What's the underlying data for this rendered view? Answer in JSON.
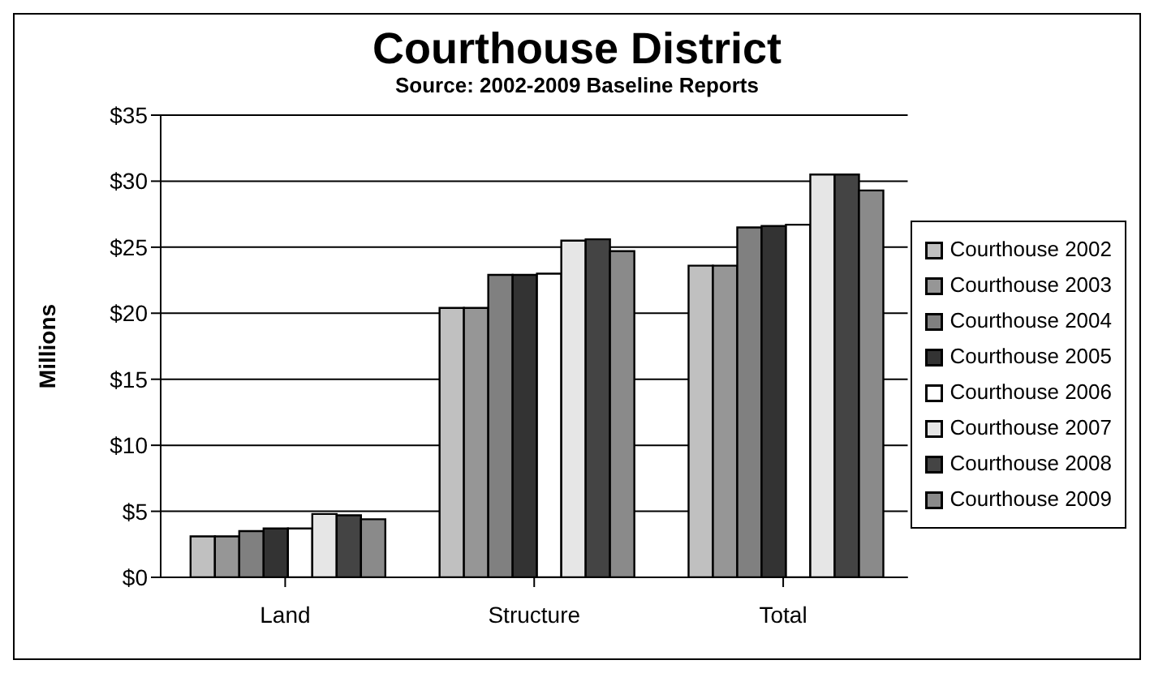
{
  "chart_data": {
    "type": "bar",
    "title": "Courthouse District",
    "subtitle": "Source: 2002-2009 Baseline Reports",
    "ylabel": "Millions",
    "categories": [
      "Land",
      "Structure",
      "Total"
    ],
    "series": [
      {
        "name": "Courthouse 2002",
        "color": "#c0c0c0",
        "values": [
          3.1,
          20.4,
          23.6
        ]
      },
      {
        "name": "Courthouse 2003",
        "color": "#969696",
        "values": [
          3.1,
          20.4,
          23.6
        ]
      },
      {
        "name": "Courthouse 2004",
        "color": "#808080",
        "values": [
          3.5,
          22.9,
          26.5
        ]
      },
      {
        "name": "Courthouse 2005",
        "color": "#333333",
        "values": [
          3.7,
          22.9,
          26.6
        ]
      },
      {
        "name": "Courthouse 2006",
        "color": "#ffffff",
        "values": [
          3.7,
          23.0,
          26.7
        ]
      },
      {
        "name": "Courthouse 2007",
        "color": "#e6e6e6",
        "values": [
          4.8,
          25.5,
          30.5
        ]
      },
      {
        "name": "Courthouse 2008",
        "color": "#444444",
        "values": [
          4.7,
          25.6,
          30.5
        ]
      },
      {
        "name": "Courthouse 2009",
        "color": "#8a8a8a",
        "values": [
          4.4,
          24.7,
          29.3
        ]
      }
    ],
    "ylim": [
      0,
      35
    ],
    "yticks": [
      {
        "value": 0,
        "label": "$0"
      },
      {
        "value": 5,
        "label": "$5"
      },
      {
        "value": 10,
        "label": "$10"
      },
      {
        "value": 15,
        "label": "$15"
      },
      {
        "value": 20,
        "label": "$20"
      },
      {
        "value": 25,
        "label": "$25"
      },
      {
        "value": 30,
        "label": "$30"
      },
      {
        "value": 35,
        "label": "$35"
      }
    ],
    "grid": "y",
    "legend": "right"
  }
}
